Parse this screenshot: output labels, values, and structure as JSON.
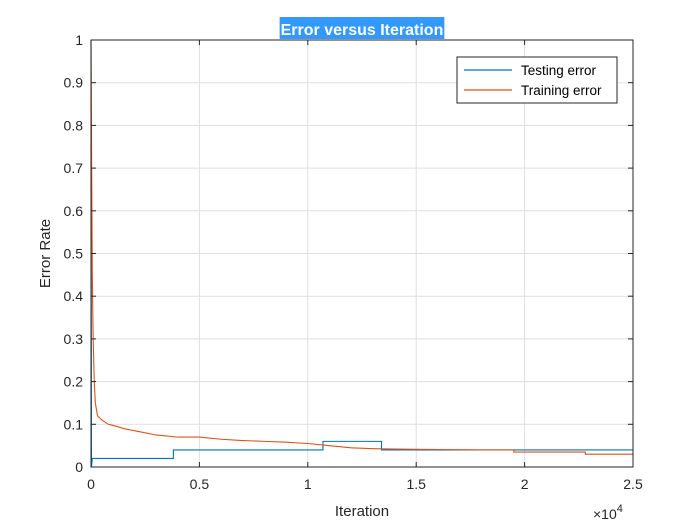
{
  "chart_data": {
    "type": "line",
    "title": "Error versus Iteration",
    "xlabel": "Iteration",
    "ylabel": "Error Rate",
    "xlim": [
      0,
      25000
    ],
    "ylim": [
      0,
      1
    ],
    "x_exponent_label": "×10",
    "x_exponent_power": "4",
    "x_ticks": [
      0,
      5000,
      10000,
      15000,
      20000,
      25000
    ],
    "x_tick_labels": [
      "0",
      "0.5",
      "1",
      "1.5",
      "2",
      "2.5"
    ],
    "y_ticks": [
      0,
      0.1,
      0.2,
      0.3,
      0.4,
      0.5,
      0.6,
      0.7,
      0.8,
      0.9,
      1
    ],
    "y_tick_labels": [
      "0",
      "0.1",
      "0.2",
      "0.3",
      "0.4",
      "0.5",
      "0.6",
      "0.7",
      "0.8",
      "0.9",
      "1"
    ],
    "grid": true,
    "legend_position": "top-right",
    "series": [
      {
        "name": "Testing error",
        "color": "#0072bd",
        "step": true,
        "points": [
          [
            0,
            1.0
          ],
          [
            20,
            0.0
          ],
          [
            60,
            0.02
          ],
          [
            3800,
            0.02
          ],
          [
            3800,
            0.04
          ],
          [
            10700,
            0.04
          ],
          [
            10700,
            0.06
          ],
          [
            13400,
            0.06
          ],
          [
            13400,
            0.04
          ],
          [
            25000,
            0.04
          ]
        ]
      },
      {
        "name": "Training error",
        "color": "#d95319",
        "step": false,
        "points": [
          [
            0,
            1.0
          ],
          [
            30,
            0.7
          ],
          [
            60,
            0.45
          ],
          [
            100,
            0.3
          ],
          [
            150,
            0.2
          ],
          [
            200,
            0.15
          ],
          [
            300,
            0.12
          ],
          [
            500,
            0.11
          ],
          [
            800,
            0.1
          ],
          [
            1200,
            0.095
          ],
          [
            1500,
            0.09
          ],
          [
            2000,
            0.085
          ],
          [
            2500,
            0.08
          ],
          [
            3000,
            0.075
          ],
          [
            4000,
            0.07
          ],
          [
            5000,
            0.07
          ],
          [
            6000,
            0.065
          ],
          [
            7000,
            0.062
          ],
          [
            8000,
            0.06
          ],
          [
            9000,
            0.058
          ],
          [
            10000,
            0.055
          ],
          [
            11000,
            0.05
          ],
          [
            12000,
            0.045
          ],
          [
            13000,
            0.043
          ],
          [
            14000,
            0.042
          ],
          [
            16000,
            0.041
          ],
          [
            18000,
            0.04
          ],
          [
            19500,
            0.04
          ],
          [
            19500,
            0.035
          ],
          [
            22800,
            0.035
          ],
          [
            22800,
            0.03
          ],
          [
            25000,
            0.03
          ]
        ]
      }
    ]
  }
}
